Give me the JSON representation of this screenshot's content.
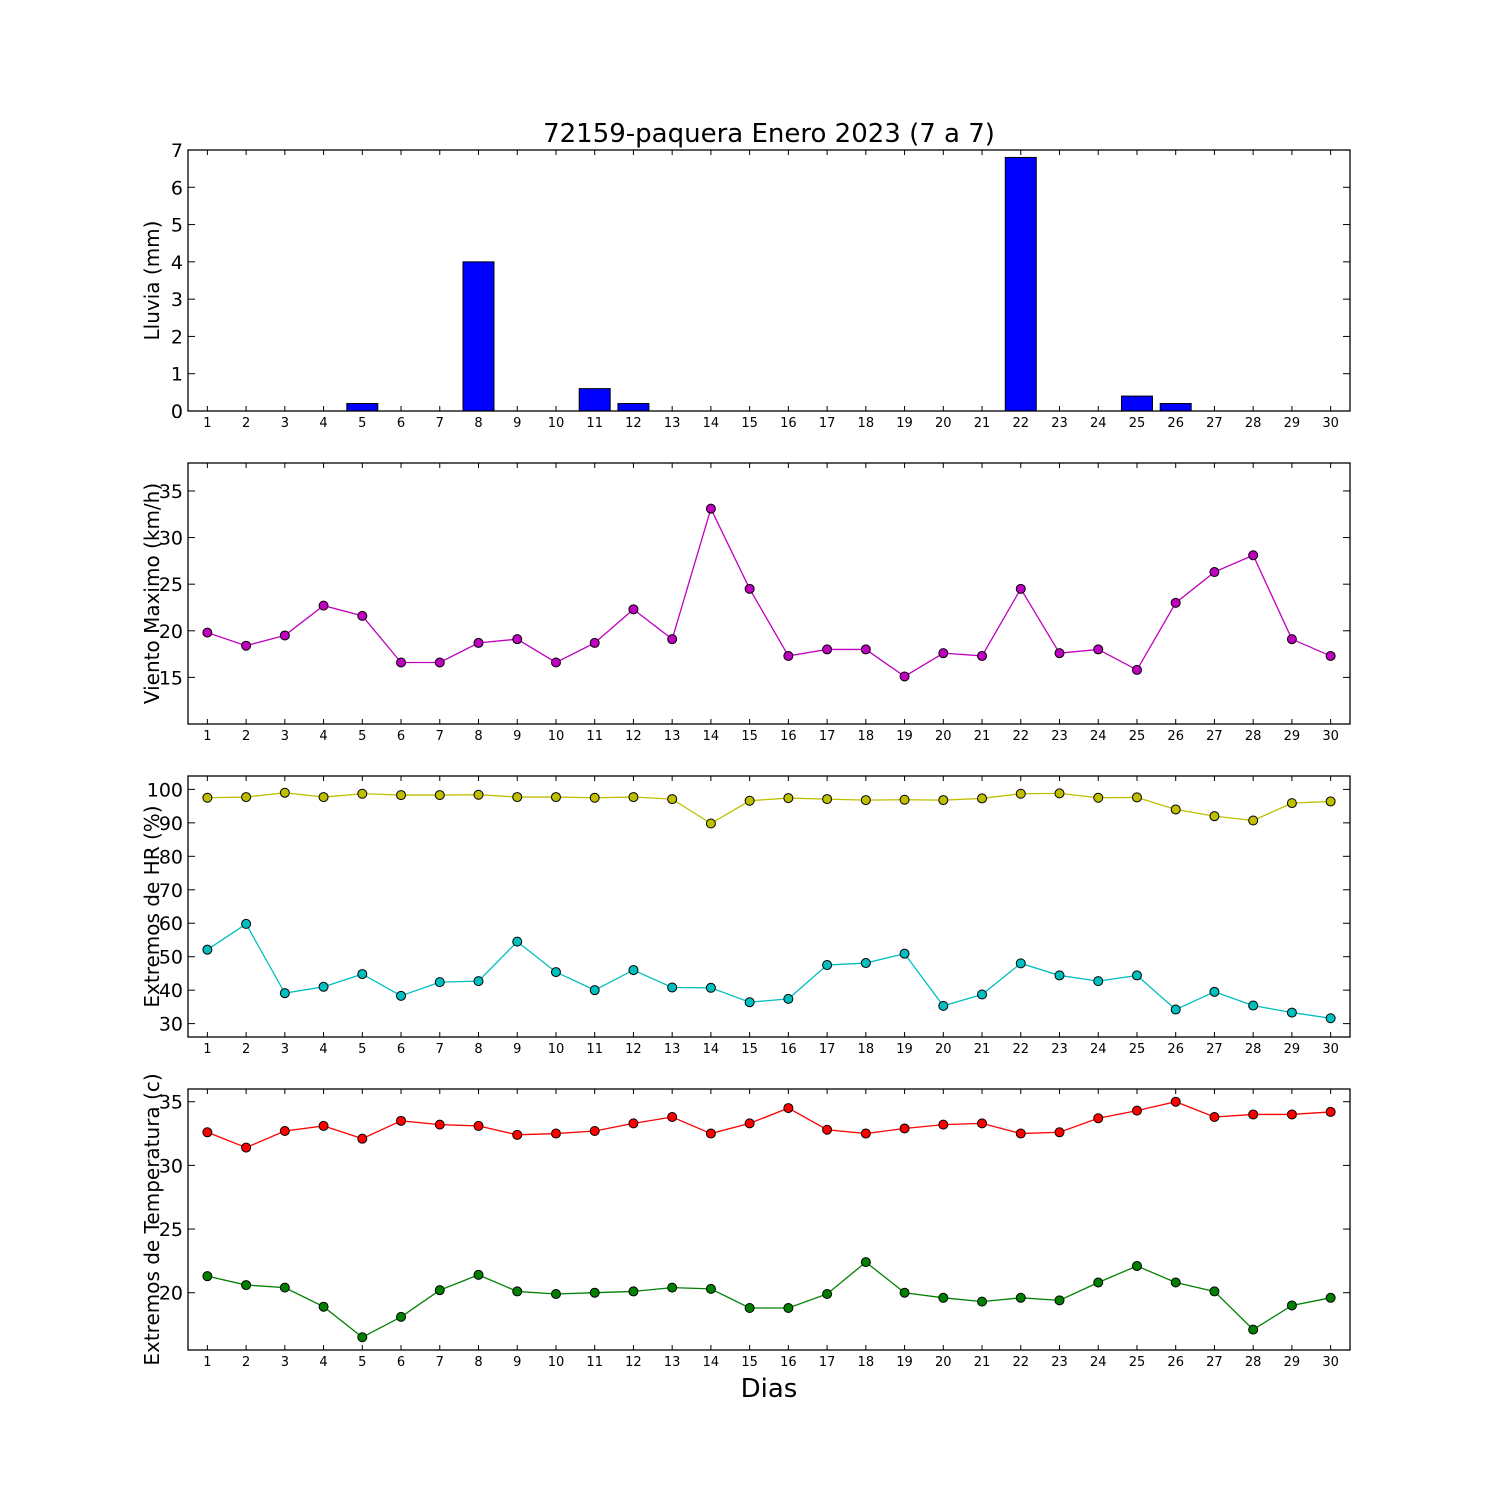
{
  "title": "72159-paquera Enero 2023  (7 a 7)",
  "xlabel": "Dias",
  "colors": {
    "rain": "#0000ff",
    "wind": "#bf00bf",
    "hr_max": "#bfbf00",
    "hr_min": "#00bfbf",
    "temp_max": "#ff0000",
    "temp_min": "#008000"
  },
  "chart_data": [
    {
      "type": "bar",
      "ylabel": "Lluvia (mm)",
      "x": [
        1,
        2,
        3,
        4,
        5,
        6,
        7,
        8,
        9,
        10,
        11,
        12,
        13,
        14,
        15,
        16,
        17,
        18,
        19,
        20,
        21,
        22,
        23,
        24,
        25,
        26,
        27,
        28,
        29,
        30
      ],
      "xlim": [
        0.5,
        30.5
      ],
      "ylim": [
        0,
        7
      ],
      "yticks": [
        0,
        1,
        2,
        3,
        4,
        5,
        6,
        7
      ],
      "series": [
        {
          "values": [
            0,
            0,
            0,
            0,
            0.2,
            0,
            0,
            4.0,
            0,
            0,
            0.6,
            0.2,
            0,
            0,
            0,
            0,
            0,
            0,
            0,
            0,
            0,
            6.8,
            0,
            0,
            0.4,
            0.2,
            0,
            0,
            0,
            0
          ],
          "color": "#0000ff"
        }
      ]
    },
    {
      "type": "line",
      "ylabel": "Viento Maximo (km/h)",
      "x": [
        1,
        2,
        3,
        4,
        5,
        6,
        7,
        8,
        9,
        10,
        11,
        12,
        13,
        14,
        15,
        16,
        17,
        18,
        19,
        20,
        21,
        22,
        23,
        24,
        25,
        26,
        27,
        28,
        29,
        30
      ],
      "xlim": [
        0.5,
        30.5
      ],
      "ylim": [
        10,
        38
      ],
      "yticks": [
        15,
        20,
        25,
        30,
        35
      ],
      "series": [
        {
          "values": [
            19.8,
            18.4,
            19.5,
            22.7,
            21.6,
            16.6,
            16.6,
            18.7,
            19.1,
            16.6,
            18.7,
            22.3,
            19.1,
            33.1,
            24.5,
            17.3,
            18.0,
            18.0,
            15.1,
            17.6,
            17.3,
            24.5,
            17.6,
            18.0,
            15.8,
            23.0,
            26.3,
            28.1,
            19.1,
            17.3
          ],
          "color": "#bf00bf"
        }
      ]
    },
    {
      "type": "line",
      "ylabel": "Extremos de HR (%)",
      "x": [
        1,
        2,
        3,
        4,
        5,
        6,
        7,
        8,
        9,
        10,
        11,
        12,
        13,
        14,
        15,
        16,
        17,
        18,
        19,
        20,
        21,
        22,
        23,
        24,
        25,
        26,
        27,
        28,
        29,
        30
      ],
      "xlim": [
        0.5,
        30.5
      ],
      "ylim": [
        26,
        104
      ],
      "yticks": [
        30,
        40,
        50,
        60,
        70,
        80,
        90,
        100
      ],
      "series": [
        {
          "values": [
            97.5,
            97.7,
            99.0,
            97.7,
            98.7,
            98.3,
            98.3,
            98.4,
            97.7,
            97.7,
            97.5,
            97.7,
            97.1,
            89.8,
            96.6,
            97.4,
            97.1,
            96.8,
            96.9,
            96.8,
            97.3,
            98.7,
            98.8,
            97.5,
            97.6,
            94.0,
            92.0,
            90.7,
            95.9,
            96.4
          ],
          "color": "#bfbf00"
        },
        {
          "values": [
            52.1,
            59.8,
            39.1,
            41.0,
            44.8,
            38.3,
            42.4,
            42.7,
            54.5,
            45.4,
            40.0,
            46.0,
            40.8,
            40.7,
            36.4,
            37.4,
            47.5,
            48.1,
            50.9,
            35.3,
            38.7,
            48.0,
            44.4,
            42.7,
            44.4,
            34.2,
            39.5,
            35.4,
            33.3,
            31.6
          ],
          "color": "#00bfbf"
        }
      ]
    },
    {
      "type": "line",
      "ylabel": "Extremos de Temperatura (c)",
      "x": [
        1,
        2,
        3,
        4,
        5,
        6,
        7,
        8,
        9,
        10,
        11,
        12,
        13,
        14,
        15,
        16,
        17,
        18,
        19,
        20,
        21,
        22,
        23,
        24,
        25,
        26,
        27,
        28,
        29,
        30
      ],
      "xlim": [
        0.5,
        30.5
      ],
      "ylim": [
        15.5,
        36
      ],
      "yticks": [
        20,
        25,
        30,
        35
      ],
      "series": [
        {
          "values": [
            32.6,
            31.4,
            32.7,
            33.1,
            32.1,
            33.5,
            33.2,
            33.1,
            32.4,
            32.5,
            32.7,
            33.3,
            33.8,
            32.5,
            33.3,
            34.5,
            32.8,
            32.5,
            32.9,
            33.2,
            33.3,
            32.5,
            32.6,
            33.7,
            34.3,
            35.0,
            33.8,
            34.0,
            34.0,
            34.2
          ],
          "color": "#ff0000"
        },
        {
          "values": [
            21.3,
            20.6,
            20.4,
            18.9,
            16.5,
            18.1,
            20.2,
            21.4,
            20.1,
            19.9,
            20.0,
            20.1,
            20.4,
            20.3,
            18.8,
            18.8,
            19.9,
            22.4,
            20.0,
            19.6,
            19.3,
            19.6,
            19.4,
            20.8,
            22.1,
            20.8,
            20.1,
            17.1,
            19.0,
            19.6
          ],
          "color": "#008000"
        }
      ]
    }
  ]
}
